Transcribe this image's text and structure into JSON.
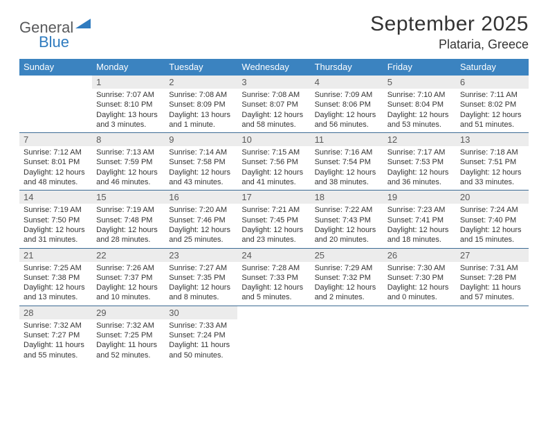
{
  "logo": {
    "text_general": "General",
    "text_blue": "Blue"
  },
  "title": "September 2025",
  "location": "Plataria, Greece",
  "header_bg": "#3b83c0",
  "week_border": "#3b6a93",
  "daynum_bg": "#ececec",
  "weekdays": [
    "Sunday",
    "Monday",
    "Tuesday",
    "Wednesday",
    "Thursday",
    "Friday",
    "Saturday"
  ],
  "weeks": [
    [
      null,
      {
        "n": "1",
        "sr": "Sunrise: 7:07 AM",
        "ss": "Sunset: 8:10 PM",
        "dl": "Daylight: 13 hours and 3 minutes."
      },
      {
        "n": "2",
        "sr": "Sunrise: 7:08 AM",
        "ss": "Sunset: 8:09 PM",
        "dl": "Daylight: 13 hours and 1 minute."
      },
      {
        "n": "3",
        "sr": "Sunrise: 7:08 AM",
        "ss": "Sunset: 8:07 PM",
        "dl": "Daylight: 12 hours and 58 minutes."
      },
      {
        "n": "4",
        "sr": "Sunrise: 7:09 AM",
        "ss": "Sunset: 8:06 PM",
        "dl": "Daylight: 12 hours and 56 minutes."
      },
      {
        "n": "5",
        "sr": "Sunrise: 7:10 AM",
        "ss": "Sunset: 8:04 PM",
        "dl": "Daylight: 12 hours and 53 minutes."
      },
      {
        "n": "6",
        "sr": "Sunrise: 7:11 AM",
        "ss": "Sunset: 8:02 PM",
        "dl": "Daylight: 12 hours and 51 minutes."
      }
    ],
    [
      {
        "n": "7",
        "sr": "Sunrise: 7:12 AM",
        "ss": "Sunset: 8:01 PM",
        "dl": "Daylight: 12 hours and 48 minutes."
      },
      {
        "n": "8",
        "sr": "Sunrise: 7:13 AM",
        "ss": "Sunset: 7:59 PM",
        "dl": "Daylight: 12 hours and 46 minutes."
      },
      {
        "n": "9",
        "sr": "Sunrise: 7:14 AM",
        "ss": "Sunset: 7:58 PM",
        "dl": "Daylight: 12 hours and 43 minutes."
      },
      {
        "n": "10",
        "sr": "Sunrise: 7:15 AM",
        "ss": "Sunset: 7:56 PM",
        "dl": "Daylight: 12 hours and 41 minutes."
      },
      {
        "n": "11",
        "sr": "Sunrise: 7:16 AM",
        "ss": "Sunset: 7:54 PM",
        "dl": "Daylight: 12 hours and 38 minutes."
      },
      {
        "n": "12",
        "sr": "Sunrise: 7:17 AM",
        "ss": "Sunset: 7:53 PM",
        "dl": "Daylight: 12 hours and 36 minutes."
      },
      {
        "n": "13",
        "sr": "Sunrise: 7:18 AM",
        "ss": "Sunset: 7:51 PM",
        "dl": "Daylight: 12 hours and 33 minutes."
      }
    ],
    [
      {
        "n": "14",
        "sr": "Sunrise: 7:19 AM",
        "ss": "Sunset: 7:50 PM",
        "dl": "Daylight: 12 hours and 31 minutes."
      },
      {
        "n": "15",
        "sr": "Sunrise: 7:19 AM",
        "ss": "Sunset: 7:48 PM",
        "dl": "Daylight: 12 hours and 28 minutes."
      },
      {
        "n": "16",
        "sr": "Sunrise: 7:20 AM",
        "ss": "Sunset: 7:46 PM",
        "dl": "Daylight: 12 hours and 25 minutes."
      },
      {
        "n": "17",
        "sr": "Sunrise: 7:21 AM",
        "ss": "Sunset: 7:45 PM",
        "dl": "Daylight: 12 hours and 23 minutes."
      },
      {
        "n": "18",
        "sr": "Sunrise: 7:22 AM",
        "ss": "Sunset: 7:43 PM",
        "dl": "Daylight: 12 hours and 20 minutes."
      },
      {
        "n": "19",
        "sr": "Sunrise: 7:23 AM",
        "ss": "Sunset: 7:41 PM",
        "dl": "Daylight: 12 hours and 18 minutes."
      },
      {
        "n": "20",
        "sr": "Sunrise: 7:24 AM",
        "ss": "Sunset: 7:40 PM",
        "dl": "Daylight: 12 hours and 15 minutes."
      }
    ],
    [
      {
        "n": "21",
        "sr": "Sunrise: 7:25 AM",
        "ss": "Sunset: 7:38 PM",
        "dl": "Daylight: 12 hours and 13 minutes."
      },
      {
        "n": "22",
        "sr": "Sunrise: 7:26 AM",
        "ss": "Sunset: 7:37 PM",
        "dl": "Daylight: 12 hours and 10 minutes."
      },
      {
        "n": "23",
        "sr": "Sunrise: 7:27 AM",
        "ss": "Sunset: 7:35 PM",
        "dl": "Daylight: 12 hours and 8 minutes."
      },
      {
        "n": "24",
        "sr": "Sunrise: 7:28 AM",
        "ss": "Sunset: 7:33 PM",
        "dl": "Daylight: 12 hours and 5 minutes."
      },
      {
        "n": "25",
        "sr": "Sunrise: 7:29 AM",
        "ss": "Sunset: 7:32 PM",
        "dl": "Daylight: 12 hours and 2 minutes."
      },
      {
        "n": "26",
        "sr": "Sunrise: 7:30 AM",
        "ss": "Sunset: 7:30 PM",
        "dl": "Daylight: 12 hours and 0 minutes."
      },
      {
        "n": "27",
        "sr": "Sunrise: 7:31 AM",
        "ss": "Sunset: 7:28 PM",
        "dl": "Daylight: 11 hours and 57 minutes."
      }
    ],
    [
      {
        "n": "28",
        "sr": "Sunrise: 7:32 AM",
        "ss": "Sunset: 7:27 PM",
        "dl": "Daylight: 11 hours and 55 minutes."
      },
      {
        "n": "29",
        "sr": "Sunrise: 7:32 AM",
        "ss": "Sunset: 7:25 PM",
        "dl": "Daylight: 11 hours and 52 minutes."
      },
      {
        "n": "30",
        "sr": "Sunrise: 7:33 AM",
        "ss": "Sunset: 7:24 PM",
        "dl": "Daylight: 11 hours and 50 minutes."
      },
      null,
      null,
      null,
      null
    ]
  ]
}
